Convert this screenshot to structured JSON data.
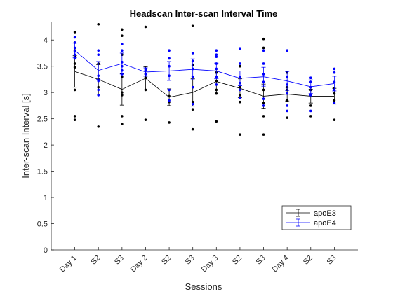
{
  "chart_data": {
    "type": "line",
    "title": "Headscan Inter-scan Interval Time",
    "xlabel": "Sessions",
    "ylabel": "Inter-scan Interval [s]",
    "categories": [
      "Day 1",
      "S2",
      "S3",
      "Day 2",
      "S2",
      "S3",
      "Day 3",
      "S2",
      "S3",
      "Day 4",
      "S2",
      "S3"
    ],
    "ylim": [
      0,
      4.35
    ],
    "yticks": [
      0,
      0.5,
      1,
      1.5,
      2,
      2.5,
      3,
      3.5,
      4
    ],
    "ytick_labels": [
      "0",
      "0.5",
      "1",
      "1.5",
      "2",
      "2.5",
      "3",
      "3.5",
      "4"
    ],
    "grid": false,
    "legend_position": "bottom-right",
    "series": [
      {
        "name": "apoE3",
        "color": "#000000",
        "mean": [
          3.4,
          3.25,
          3.06,
          3.27,
          2.91,
          3.0,
          3.21,
          3.08,
          2.93,
          2.97,
          2.93,
          2.93
        ],
        "error": [
          0.3,
          0.28,
          0.3,
          0.22,
          0.16,
          0.26,
          0.2,
          0.18,
          0.23,
          0.13,
          0.13,
          0.15
        ],
        "points": [
          [
            4.15,
            3.95,
            3.8,
            3.7,
            3.55,
            3.48,
            3.05,
            2.55,
            2.48
          ],
          [
            4.3,
            3.55,
            3.25,
            3.1,
            2.35
          ],
          [
            4.2,
            4.08,
            3.72,
            3.3,
            3.0,
            2.95,
            2.55,
            2.4
          ],
          [
            4.25,
            3.45,
            3.35,
            3.28,
            3.05,
            2.48
          ],
          [
            3.05,
            2.93,
            2.82,
            2.43
          ],
          [
            4.28,
            3.52,
            3.3,
            3.1,
            2.82,
            2.68,
            2.3
          ],
          [
            3.38,
            3.22,
            3.05,
            2.98,
            2.45
          ],
          [
            3.5,
            3.1,
            2.95,
            2.82,
            2.2
          ],
          [
            4.02,
            3.85,
            3.05,
            2.8,
            2.55,
            2.2
          ],
          [
            3.38,
            3.1,
            3.05,
            2.85,
            2.52
          ],
          [
            3.05,
            2.95,
            2.75,
            2.55
          ],
          [
            3.08,
            2.98,
            2.85,
            2.48
          ]
        ]
      },
      {
        "name": "apoE4",
        "color": "#0000ff",
        "mean": [
          3.8,
          3.42,
          3.55,
          3.39,
          3.41,
          3.44,
          3.41,
          3.27,
          3.3,
          3.22,
          3.11,
          3.17
        ],
        "error": [
          0.14,
          0.17,
          0.2,
          0.08,
          0.18,
          0.2,
          0.15,
          0.14,
          0.18,
          0.18,
          0.13,
          0.14
        ],
        "points": [
          [
            4.05,
            3.95,
            3.85,
            3.78,
            3.72,
            3.65
          ],
          [
            3.8,
            3.72,
            3.32,
            3.22,
            3.05,
            2.95
          ],
          [
            3.92,
            3.8,
            3.58,
            3.5,
            3.42,
            3.35
          ],
          [
            3.45,
            3.42,
            3.35
          ],
          [
            3.8,
            3.65,
            3.5,
            3.32,
            3.05,
            2.85
          ],
          [
            3.75,
            3.6,
            3.45,
            3.3,
            3.1,
            2.78
          ],
          [
            3.8,
            3.72,
            3.68,
            3.55,
            3.45,
            3.3,
            3.15
          ],
          [
            3.84,
            3.55,
            3.3,
            3.18,
            3.05,
            2.9
          ],
          [
            3.8,
            3.55,
            3.35,
            3.2,
            2.88,
            2.75
          ],
          [
            3.8,
            3.3,
            3.15,
            2.98,
            2.75,
            2.65
          ],
          [
            3.28,
            3.2,
            3.1,
            2.95,
            2.65
          ],
          [
            3.45,
            3.38,
            3.2,
            3.05,
            2.8
          ]
        ]
      }
    ]
  }
}
